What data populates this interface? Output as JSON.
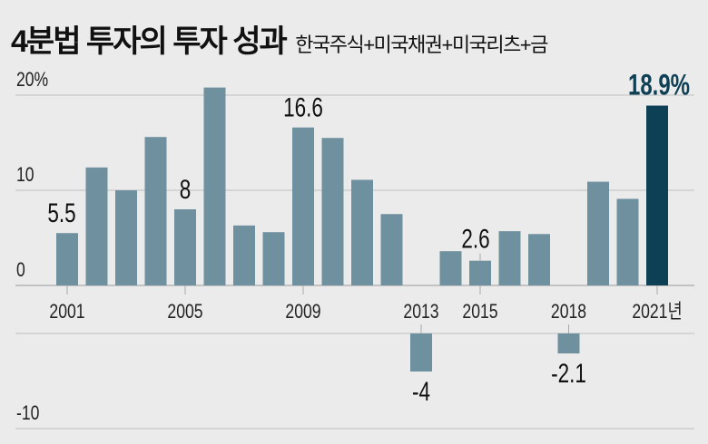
{
  "chart_data": {
    "type": "bar",
    "title": "4분법 투자의 투자 성과",
    "subtitle": "한국주식+미국채권+미국리츠+금",
    "categories": [
      "2001",
      "2002",
      "2003",
      "2004",
      "2005",
      "2006",
      "2007",
      "2008",
      "2009",
      "2010",
      "2011",
      "2012",
      "2013",
      "2014",
      "2015",
      "2016",
      "2017",
      "2018",
      "2019",
      "2020",
      "2021"
    ],
    "values": [
      5.5,
      12.4,
      10.0,
      15.6,
      8,
      20.8,
      6.3,
      5.6,
      16.6,
      15.5,
      11.1,
      7.5,
      -4,
      3.6,
      2.6,
      5.7,
      5.4,
      -2.1,
      10.9,
      9.1,
      18.9
    ],
    "unit": "%",
    "ylim": [
      -10,
      20
    ],
    "y_ticks": [
      {
        "value": 20,
        "label": "20%"
      },
      {
        "value": 10,
        "label": "10"
      },
      {
        "value": 0,
        "label": "0"
      },
      {
        "value": -10,
        "label": "-10"
      }
    ],
    "x_tick_labels": [
      {
        "year": "2001",
        "label": "2001"
      },
      {
        "year": "2005",
        "label": "2005"
      },
      {
        "year": "2009",
        "label": "2009"
      },
      {
        "year": "2013",
        "label": "2013"
      },
      {
        "year": "2015",
        "label": "2015"
      },
      {
        "year": "2018",
        "label": "2018"
      },
      {
        "year": "2021",
        "label": "2021년"
      }
    ],
    "data_labels": [
      {
        "year": "2001",
        "label": "5.5"
      },
      {
        "year": "2005",
        "label": "8"
      },
      {
        "year": "2009",
        "label": "16.6"
      },
      {
        "year": "2013",
        "label": "-4"
      },
      {
        "year": "2015",
        "label": "2.6"
      },
      {
        "year": "2018",
        "label": "-2.1"
      },
      {
        "year": "2021",
        "label": "18.9%"
      }
    ],
    "highlight": "2021",
    "axis_break": "negative region drawn below the year labels",
    "grid": true,
    "colors": {
      "bar": "#6f909f",
      "highlight": "#0d3f55",
      "grid": "#c8c8c8",
      "background": "#ebebeb"
    }
  }
}
